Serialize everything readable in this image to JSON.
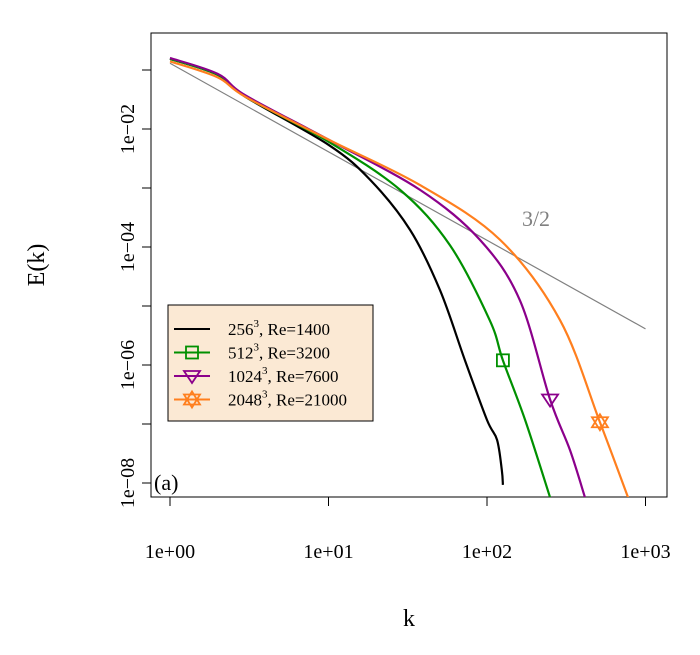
{
  "chart_data": {
    "type": "line",
    "xlabel": "k",
    "ylabel": "E(k)",
    "xscale": "log",
    "yscale": "log",
    "xlim": [
      0.76,
      1370
    ],
    "ylim": [
      5.7e-09,
      0.43
    ],
    "grid": false,
    "legend_placement": "left",
    "panel_label": "(a)",
    "x_ticks": [
      1,
      10,
      100,
      1000
    ],
    "x_tick_labels": [
      "1e+00",
      "1e+01",
      "1e+02",
      "1e+03"
    ],
    "y_ticks": [
      0.1,
      0.01,
      0.001,
      0.0001,
      1e-05,
      1e-06,
      1e-07,
      1e-08
    ],
    "y_tick_labels": [
      "",
      "1e−02",
      "",
      "1e−04",
      "",
      "1e−06",
      "",
      "1e−08"
    ],
    "reference_line": {
      "label": "3/2",
      "slope": -1.5,
      "x": [
        1,
        1000
      ],
      "y": [
        0.13,
        4.1e-06
      ],
      "color": "#808080"
    },
    "series": [
      {
        "name": "256³, Re=1400",
        "legend_base": "256",
        "legend_sup": "3",
        "legend_rest": ", Re=1400",
        "color": "#000000",
        "marker": "none",
        "x": [
          1,
          2,
          3,
          10,
          18.3,
          32.7,
          50.5,
          72.6,
          100,
          115.7,
          124,
          126
        ],
        "y": [
          0.155,
          0.083,
          0.035,
          0.0054,
          0.00138,
          0.000195,
          1.86e-05,
          1.2e-06,
          1.17e-07,
          5.4e-08,
          1.66e-08,
          9.3e-09
        ]
      },
      {
        "name": "512³, Re=3200",
        "legend_base": "512",
        "legend_sup": "3",
        "legend_rest": ", Re=3200",
        "color": "#009000",
        "marker": "square",
        "marker_at": [
          126,
          1.2e-06
        ],
        "x": [
          1,
          2,
          3,
          10,
          28.3,
          58.4,
          104,
          126,
          174,
          250
        ],
        "y": [
          0.155,
          0.083,
          0.035,
          0.0061,
          0.00093,
          0.000107,
          5.75e-06,
          1.2e-06,
          1.17e-07,
          5.7e-09
        ]
      },
      {
        "name": "1024³, Re=7600",
        "legend_base": "1024",
        "legend_sup": "3",
        "legend_rest": ", Re=7600",
        "color": "#8b008b",
        "marker": "triangle-down",
        "marker_at": [
          250,
          2.6e-07
        ],
        "x": [
          1,
          2,
          3,
          10,
          37.8,
          90.3,
          161,
          250,
          334,
          415
        ],
        "y": [
          0.16,
          0.086,
          0.037,
          0.0066,
          0.00093,
          0.000132,
          1.26e-05,
          2.6e-07,
          3.6e-08,
          5.7e-09
        ]
      },
      {
        "name": "2048³, Re=21000",
        "legend_base": "2048",
        "legend_sup": "3",
        "legend_rest": ", Re=21000",
        "color": "#ff7f1e",
        "marker": "star-of-david",
        "marker_at": [
          516,
          1.07e-07
        ],
        "x": [
          1,
          2,
          3,
          10,
          37.8,
          121,
          289,
          516,
          776
        ],
        "y": [
          0.14,
          0.075,
          0.035,
          0.0066,
          0.00112,
          0.000132,
          5.75e-06,
          1.07e-07,
          5.7e-09
        ]
      }
    ]
  }
}
